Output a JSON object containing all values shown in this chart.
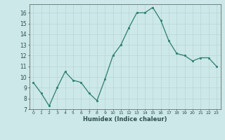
{
  "x": [
    0,
    1,
    2,
    3,
    4,
    5,
    6,
    7,
    8,
    9,
    10,
    11,
    12,
    13,
    14,
    15,
    16,
    17,
    18,
    19,
    20,
    21,
    22,
    23
  ],
  "y": [
    9.5,
    8.5,
    7.3,
    9.0,
    10.5,
    9.7,
    9.5,
    8.5,
    7.8,
    9.8,
    12.0,
    13.0,
    14.6,
    16.0,
    16.0,
    16.5,
    15.3,
    13.4,
    12.2,
    12.0,
    11.5,
    11.8,
    11.8,
    11.0
  ],
  "xlabel": "Humidex (Indice chaleur)",
  "ylim": [
    7,
    16.8
  ],
  "xlim": [
    -0.5,
    23.5
  ],
  "yticks": [
    7,
    8,
    9,
    10,
    11,
    12,
    13,
    14,
    15,
    16
  ],
  "xticks": [
    0,
    1,
    2,
    3,
    4,
    5,
    6,
    7,
    8,
    9,
    10,
    11,
    12,
    13,
    14,
    15,
    16,
    17,
    18,
    19,
    20,
    21,
    22,
    23
  ],
  "xtick_labels": [
    "0",
    "1",
    "2",
    "3",
    "4",
    "5",
    "6",
    "7",
    "8",
    "9",
    "10",
    "11",
    "12",
    "13",
    "14",
    "15",
    "16",
    "17",
    "18",
    "19",
    "20",
    "21",
    "22",
    "23"
  ],
  "line_color": "#2e7d6e",
  "marker_color": "#2e7d6e",
  "bg_color": "#cce8e8",
  "grid_color": "#b8d4d4",
  "font_color": "#2e4e4e"
}
